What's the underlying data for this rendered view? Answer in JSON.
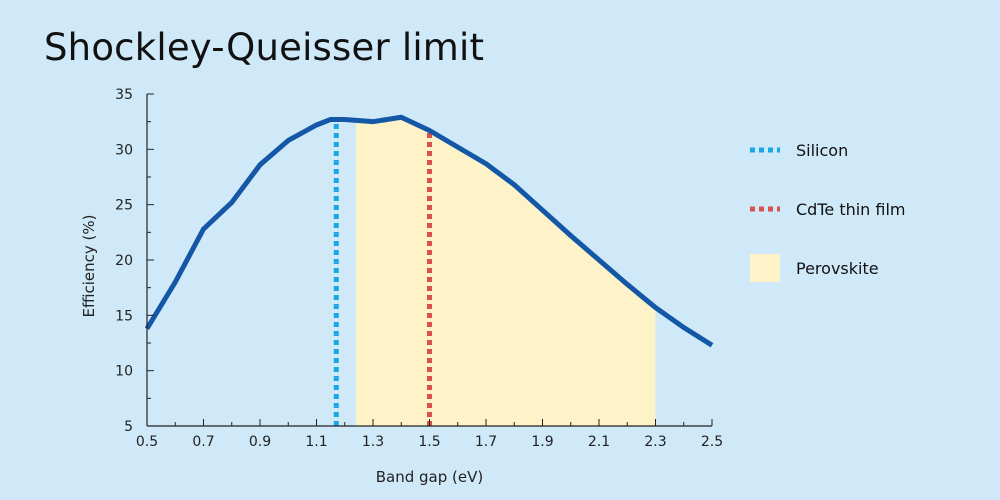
{
  "title": "Shockley-Queisser limit",
  "colors": {
    "background": "#cfe9f9",
    "curve": "#1357a6",
    "silicon": "#1aa7e3",
    "cdte": "#d9534a",
    "perovskite": "#fdf2c8"
  },
  "chart_data": {
    "type": "line",
    "title": "Shockley-Queisser limit",
    "xlabel": "Band gap (eV)",
    "ylabel": "Efficiency (%)",
    "xlim": [
      0.5,
      2.5
    ],
    "ylim": [
      5,
      35
    ],
    "x_ticks": [
      "0.5",
      "0.7",
      "0.9",
      "1.1",
      "1.3",
      "1.5",
      "1.7",
      "1.9",
      "2.1",
      "2.3",
      "2.5"
    ],
    "y_ticks": [
      "5",
      "10",
      "15",
      "20",
      "25",
      "30",
      "35"
    ],
    "series": [
      {
        "x": [
          0.5,
          0.6,
          0.7,
          0.8,
          0.9,
          1.0,
          1.1,
          1.15,
          1.2,
          1.3,
          1.4,
          1.5,
          1.6,
          1.7,
          1.8,
          1.9,
          2.0,
          2.1,
          2.2,
          2.3,
          2.4,
          2.5
        ],
        "y": [
          13.8,
          18.0,
          22.8,
          25.2,
          28.6,
          30.8,
          32.2,
          32.7,
          32.7,
          32.5,
          32.9,
          31.7,
          30.2,
          28.7,
          26.8,
          24.5,
          22.2,
          20.0,
          17.8,
          15.7,
          13.9,
          12.3
        ]
      }
    ],
    "vlines": [
      {
        "name": "Silicon",
        "x": 1.17
      },
      {
        "name": "CdTe thin film",
        "x": 1.5
      }
    ],
    "shaded_region": {
      "name": "Perovskite",
      "x": [
        1.24,
        2.3
      ]
    },
    "legend_placement": "right",
    "legend": [
      "Silicon",
      "CdTe thin film",
      "Perovskite"
    ],
    "grid": false
  }
}
